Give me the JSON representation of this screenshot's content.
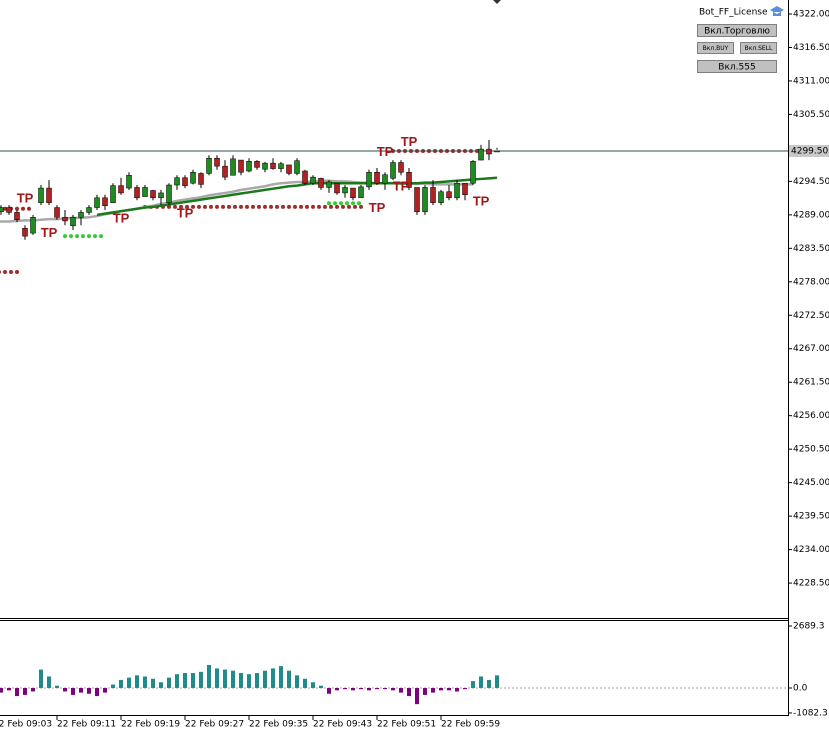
{
  "chart_data": {
    "type": "candlestick",
    "categories": [
      "22 Feb 09:03",
      null,
      null,
      null,
      null,
      null,
      null,
      null,
      "22 Feb 09:11",
      null,
      null,
      null,
      null,
      null,
      null,
      null,
      "22 Feb 09:19",
      null,
      null,
      null,
      null,
      null,
      null,
      null,
      "22 Feb 09:27",
      null,
      null,
      null,
      null,
      null,
      null,
      null,
      "22 Feb 09:35",
      null,
      null,
      null,
      null,
      null,
      null,
      null,
      "22 Feb 09:43",
      null,
      null,
      null,
      null,
      null,
      null,
      null,
      "22 Feb 09:51",
      null,
      null,
      null,
      null,
      null,
      null,
      null,
      "22 Feb 09:59",
      null,
      null,
      null,
      null,
      null,
      null,
      null
    ],
    "open": [
      4291.4,
      4289.5,
      4290.2,
      4289.4,
      4286.8,
      4286.0,
      4291.0,
      4293.4,
      4290.2,
      4288.6,
      4287.2,
      4288.6,
      4289.4,
      4290.2,
      4291.8,
      4291.0,
      4293.8,
      4293.4,
      4293.5,
      4292.0,
      4293.0,
      4291.8,
      4291.0,
      4293.9,
      4295.1,
      4294.2,
      4295.8,
      4295.8,
      4298.3,
      4297.0,
      4295.5,
      4298.0,
      4296.2,
      4297.8,
      4296.5,
      4297.5,
      4296.6,
      4297.2,
      4295.8,
      4296.2,
      4294.2,
      4295.0,
      4293.5,
      4294.2,
      4292.6,
      4293.4,
      4291.8,
      4293.6,
      4296.0,
      4294.2,
      4295.0,
      4297.6,
      4296.0,
      4293.5,
      4289.5,
      4293.5,
      4291.0,
      4292.8,
      4291.8,
      4294.2,
      4294.2,
      4298.0,
      4299.8,
      4299.5
    ],
    "high": [
      4293.1,
      4290.6,
      4290.6,
      4289.8,
      4287.3,
      4289.0,
      4293.9,
      4294.7,
      4290.6,
      4289.8,
      4289.0,
      4289.8,
      4290.6,
      4292.3,
      4292.3,
      4294.2,
      4295.1,
      4296.0,
      4293.9,
      4293.9,
      4293.1,
      4293.1,
      4294.2,
      4295.5,
      4295.5,
      4296.4,
      4296.0,
      4298.8,
      4298.8,
      4298.0,
      4298.8,
      4298.0,
      4298.3,
      4298.0,
      4297.7,
      4298.3,
      4297.7,
      4297.2,
      4298.3,
      4296.4,
      4295.5,
      4295.1,
      4294.7,
      4294.2,
      4293.9,
      4293.4,
      4293.9,
      4296.4,
      4296.7,
      4296.0,
      4298.0,
      4298.0,
      4296.7,
      4293.1,
      4293.9,
      4294.7,
      4293.1,
      4293.9,
      4294.7,
      4293.9,
      4298.0,
      4300.5,
      4301.3,
      4300.0
    ],
    "low": [
      4290.6,
      4289.0,
      4289.0,
      4287.8,
      4284.9,
      4285.7,
      4290.6,
      4290.6,
      4288.2,
      4287.3,
      4286.5,
      4287.3,
      4289.0,
      4289.8,
      4289.8,
      4291.4,
      4292.3,
      4293.1,
      4291.4,
      4292.3,
      4291.4,
      4290.6,
      4290.6,
      4293.1,
      4293.4,
      4294.0,
      4293.4,
      4295.5,
      4296.4,
      4294.7,
      4295.5,
      4295.5,
      4296.0,
      4296.4,
      4296.0,
      4296.4,
      4296.0,
      4295.5,
      4295.5,
      4293.9,
      4293.9,
      4293.1,
      4292.6,
      4292.3,
      4291.8,
      4291.4,
      4291.8,
      4293.1,
      4293.9,
      4293.1,
      4294.7,
      4295.5,
      4293.1,
      4289.0,
      4289.0,
      4290.6,
      4290.6,
      4291.4,
      4291.4,
      4291.4,
      4293.9,
      4298.0,
      4298.0,
      4299.7
    ],
    "close": [
      4292.3,
      4290.2,
      4289.4,
      4288.2,
      4285.5,
      4288.6,
      4293.4,
      4291.0,
      4288.6,
      4288.0,
      4288.6,
      4289.4,
      4290.2,
      4291.8,
      4290.5,
      4293.8,
      4292.6,
      4295.5,
      4291.8,
      4293.5,
      4291.8,
      4292.6,
      4293.9,
      4295.1,
      4293.8,
      4296.0,
      4294.0,
      4298.3,
      4297.0,
      4295.2,
      4298.2,
      4296.0,
      4297.8,
      4296.8,
      4297.5,
      4296.6,
      4297.4,
      4295.8,
      4297.9,
      4294.2,
      4295.2,
      4293.5,
      4294.4,
      4292.6,
      4293.5,
      4291.8,
      4293.6,
      4296.0,
      4294.2,
      4295.6,
      4297.6,
      4296.0,
      4293.5,
      4289.5,
      4293.5,
      4291.0,
      4292.8,
      4291.8,
      4294.2,
      4292.3,
      4297.8,
      4299.8,
      4299.0,
      4299.5
    ],
    "up_color": "#1e8c1e",
    "down_color": "#b22222",
    "series": [
      {
        "color": "#a9a9a9",
        "values": [
          4287.8,
          4287.9,
          4287.9,
          4288.0,
          4288.1,
          4288.1,
          4288.2,
          4288.3,
          4288.3,
          4288.4,
          4288.5,
          4288.5,
          4288.6,
          4288.8,
          4289.1,
          4289.3,
          4289.6,
          4289.8,
          4290.0,
          4290.3,
          4290.5,
          4290.8,
          4291.0,
          4291.3,
          4291.5,
          4291.7,
          4291.9,
          4292.2,
          4292.4,
          4292.6,
          4292.8,
          4293.1,
          4293.3,
          4293.5,
          4293.7,
          4294.0,
          4294.2,
          4294.3,
          4294.4,
          4294.4,
          4294.5,
          4294.6,
          4294.6,
          4294.5,
          4294.5,
          4294.4,
          4294.3,
          4294.3,
          4294.2,
          4294.2,
          4294.2,
          4294.1,
          4294.1,
          4294.1,
          4294.1,
          4294.0,
          4294.0,
          4294.0,
          4294.0,
          4294.0,
          4294.0,
          null,
          null,
          null
        ]
      },
      {
        "color": "#1a7a1a",
        "values": [
          null,
          null,
          null,
          null,
          null,
          null,
          null,
          null,
          null,
          null,
          null,
          null,
          null,
          4289.0,
          4289.2,
          4289.4,
          4289.6,
          4289.8,
          4290.0,
          4290.2,
          4290.3,
          4290.5,
          4290.7,
          4290.9,
          4291.1,
          4291.3,
          4291.5,
          4291.7,
          4291.9,
          4292.1,
          4292.3,
          4292.5,
          4292.7,
          4292.9,
          4293.1,
          4293.3,
          4293.5,
          4293.7,
          4293.8,
          4294.0,
          4294.2,
          4294.2,
          4294.2,
          4294.2,
          4294.2,
          4294.2,
          4294.2,
          4294.2,
          4294.2,
          4294.2,
          4294.2,
          4294.2,
          4294.2,
          4294.2,
          4294.3,
          4294.3,
          4294.4,
          4294.5,
          4294.6,
          4294.7,
          4294.8,
          4294.9,
          4295.0,
          4295.1
        ]
      }
    ],
    "levels": [
      {
        "y": 4290.3,
        "from": 19,
        "to": 46,
        "color": "#a52a2a"
      },
      {
        "y": 4299.5,
        "from": 50,
        "to": 61,
        "color": "#a52a2a"
      },
      {
        "y": 4279.6,
        "from": 0,
        "to": 3,
        "color": "#a52a2a"
      },
      {
        "y": 4290.0,
        "from": 0,
        "to": 5,
        "color": "#a52a2a"
      },
      {
        "y": 4285.5,
        "from": 9,
        "to": 14,
        "color": "#33cc33"
      },
      {
        "y": 4290.9,
        "from": 42,
        "to": 46,
        "color": "#33cc33"
      }
    ],
    "annotations": [
      {
        "text": "TP",
        "x": 4,
        "y": 4291.6
      },
      {
        "text": "TP",
        "x": 7,
        "y": 4285.9
      },
      {
        "text": "TP",
        "x": 16,
        "y": 4288.3
      },
      {
        "text": "TP",
        "x": 24,
        "y": 4289.1
      },
      {
        "text": "TP",
        "x": 49,
        "y": 4299.2
      },
      {
        "text": "TP",
        "x": 52,
        "y": 4300.9
      },
      {
        "text": "TP",
        "x": 48,
        "y": 4290.0
      },
      {
        "text": "TP",
        "x": 51,
        "y": 4293.6
      },
      {
        "text": "TP",
        "x": 61,
        "y": 4291.1
      }
    ],
    "ylim": [
      4222.76,
      4324.3
    ],
    "yticks": [
      {
        "value": 4322,
        "label": "4322.00"
      },
      {
        "value": 4316.5,
        "label": "4316.50"
      },
      {
        "value": 4311,
        "label": "4311.00"
      },
      {
        "value": 4305.5,
        "label": "4305.50"
      },
      {
        "value": 4294.5,
        "label": "4294.50"
      },
      {
        "value": 4289,
        "label": "4289.00"
      },
      {
        "value": 4283.5,
        "label": "4283.50"
      },
      {
        "value": 4278,
        "label": "4278.00"
      },
      {
        "value": 4272.5,
        "label": "4272.50"
      },
      {
        "value": 4267,
        "label": "4267.00"
      },
      {
        "value": 4261.5,
        "label": "4261.50"
      },
      {
        "value": 4256,
        "label": "4256.00"
      },
      {
        "value": 4250.5,
        "label": "4250.50"
      },
      {
        "value": 4245,
        "label": "4245.00"
      },
      {
        "value": 4239.5,
        "label": "4239.50"
      },
      {
        "value": 4234,
        "label": "4234.00"
      },
      {
        "value": 4228.5,
        "label": "4228.50"
      }
    ],
    "current_price": {
      "value": 4299.5,
      "label": "4299.50"
    },
    "indicator": {
      "type": "bar",
      "pos_color": "#1f8c8c",
      "neg_color": "#800080",
      "values": [
        -150,
        -200,
        -100,
        -350,
        -300,
        -150,
        800,
        500,
        100,
        -150,
        -300,
        -200,
        -250,
        -350,
        -200,
        150,
        350,
        450,
        550,
        500,
        400,
        250,
        450,
        600,
        650,
        650,
        700,
        1000,
        850,
        800,
        750,
        650,
        600,
        650,
        750,
        850,
        950,
        750,
        550,
        400,
        250,
        100,
        -250,
        -100,
        -50,
        -100,
        -50,
        -100,
        -50,
        -50,
        -100,
        -200,
        -350,
        -700,
        -300,
        -200,
        -100,
        -100,
        -150,
        -50,
        300,
        500,
        350,
        550
      ],
      "ylim": [
        -1171,
        2950
      ],
      "yticks": [
        2689.3,
        {
          "value": 0,
          "label": "0.0"
        },
        -1082.3
      ]
    }
  },
  "panel": {
    "title": "Bot_FF_License",
    "buttons": [
      "Вкл.Торговлю",
      "Вкл.BUY",
      "Вкл.SELL",
      "Вкл.555"
    ]
  }
}
